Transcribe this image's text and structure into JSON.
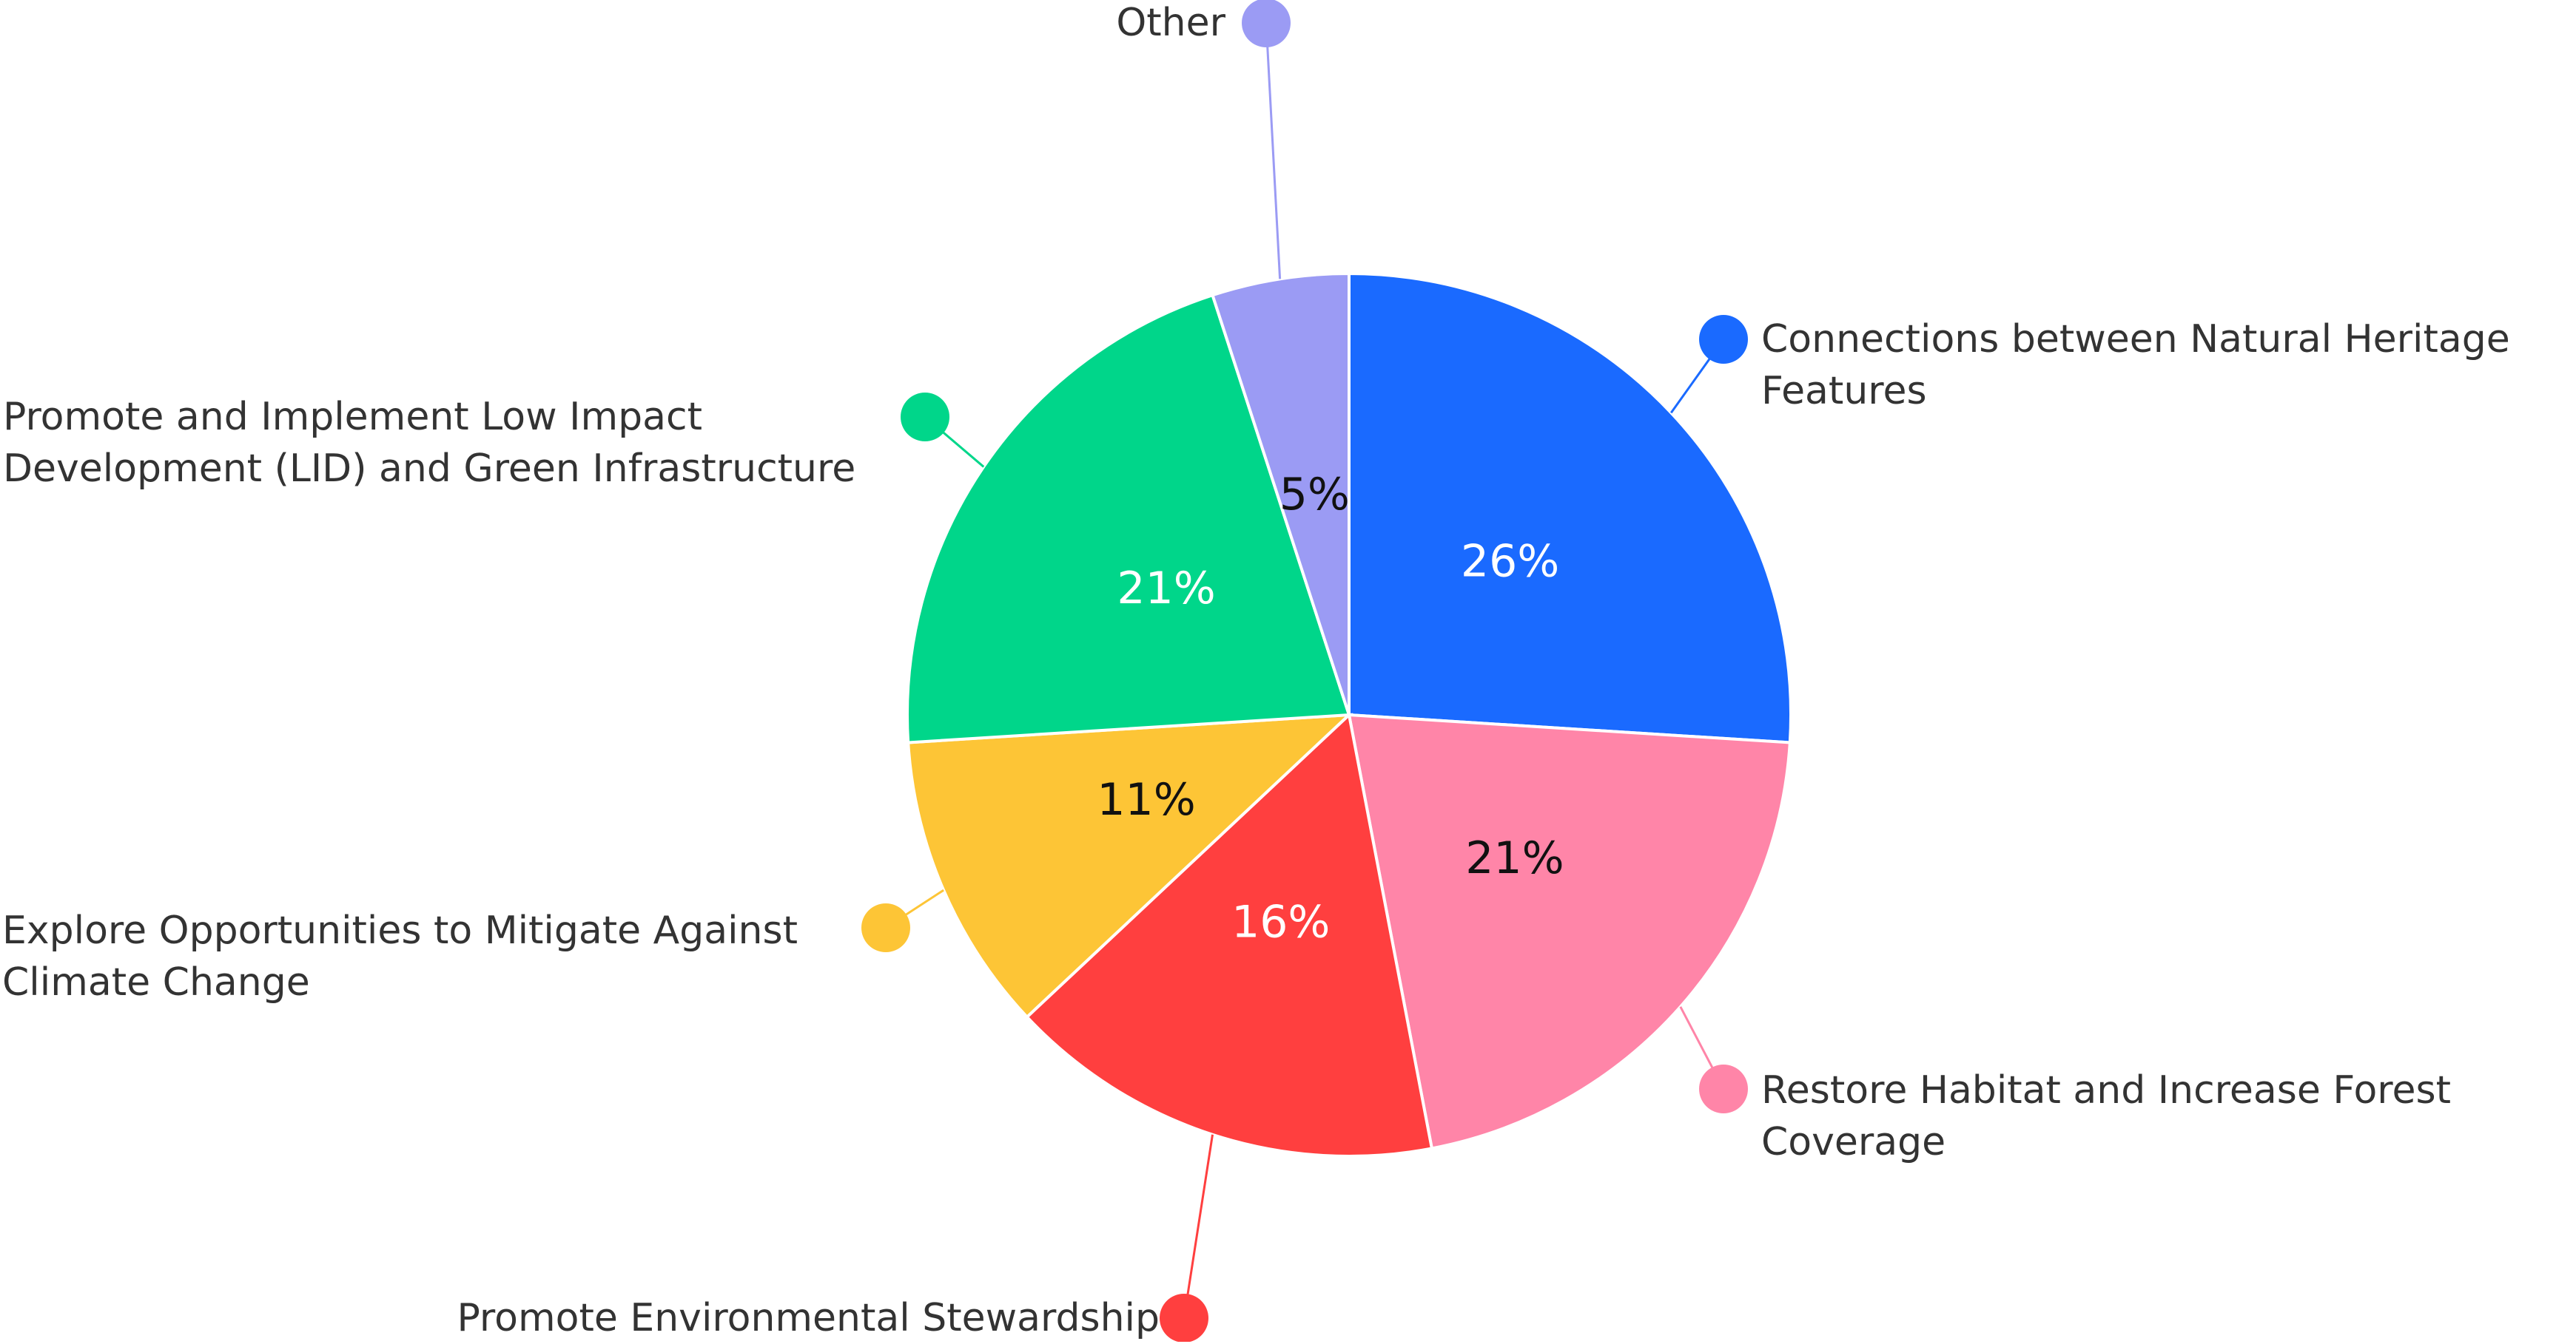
{
  "chart_data": {
    "type": "pie",
    "categories": [
      "Connections between Natural Heritage Features",
      "Restore Habitat and Increase Forest Coverage",
      "Promote Environmental Stewardship",
      "Explore Opportunities to Mitigate Against Climate Change",
      "Promote and Implement Low Impact Development (LID) and Green Infrastructure",
      "Other"
    ],
    "values": [
      26,
      21,
      16,
      11,
      21,
      5
    ],
    "value_labels": [
      "26%",
      "21%",
      "16%",
      "11%",
      "21%",
      "5%"
    ],
    "colors": [
      "#1a6aff",
      "#ff85a8",
      "#ff3f3f",
      "#fdc536",
      "#00d68a",
      "#9b9bf4"
    ]
  }
}
